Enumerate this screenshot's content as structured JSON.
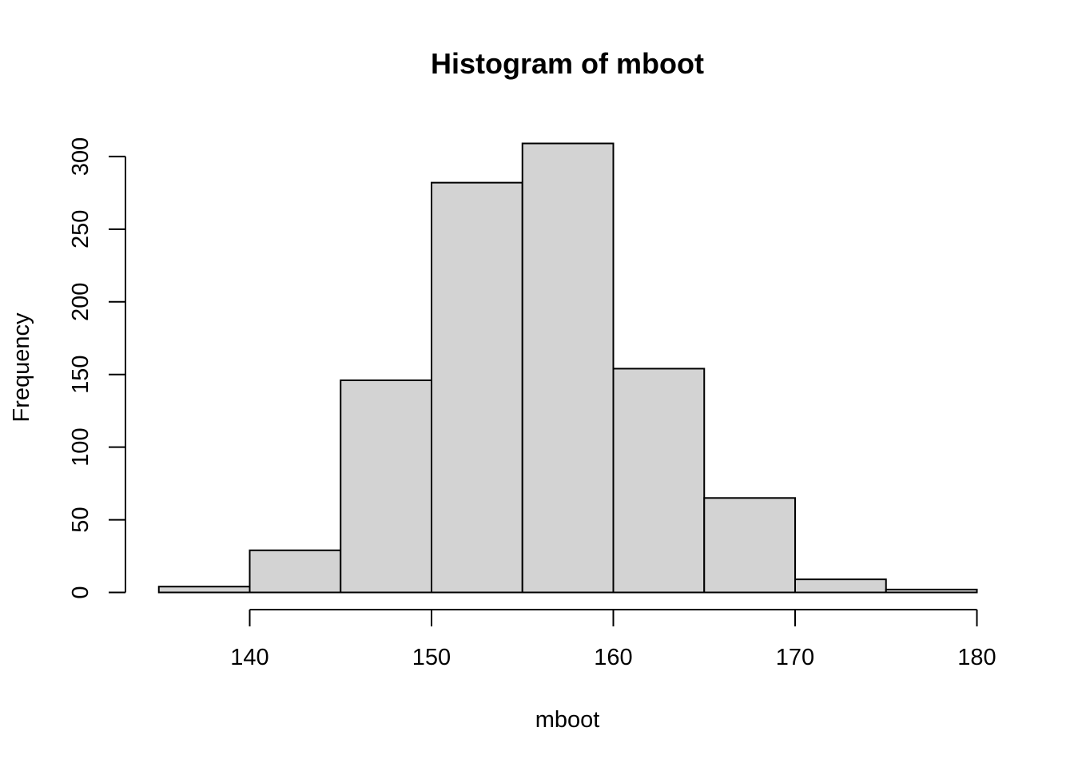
{
  "chart_data": {
    "type": "bar",
    "title": "Histogram of mboot",
    "xlabel": "mboot",
    "ylabel": "Frequency",
    "bins": [
      {
        "from": 135,
        "to": 140,
        "count": 4
      },
      {
        "from": 140,
        "to": 145,
        "count": 29
      },
      {
        "from": 145,
        "to": 150,
        "count": 146
      },
      {
        "from": 150,
        "to": 155,
        "count": 282
      },
      {
        "from": 155,
        "to": 160,
        "count": 309
      },
      {
        "from": 160,
        "to": 165,
        "count": 154
      },
      {
        "from": 165,
        "to": 170,
        "count": 65
      },
      {
        "from": 170,
        "to": 175,
        "count": 9
      },
      {
        "from": 175,
        "to": 180,
        "count": 2
      }
    ],
    "xlim": [
      135,
      180
    ],
    "ylim": [
      0,
      309
    ],
    "x_ticks": [
      140,
      150,
      160,
      170,
      180
    ],
    "y_ticks": [
      0,
      50,
      100,
      150,
      200,
      250,
      300
    ],
    "bar_color": "#d3d3d3",
    "grid": false
  }
}
